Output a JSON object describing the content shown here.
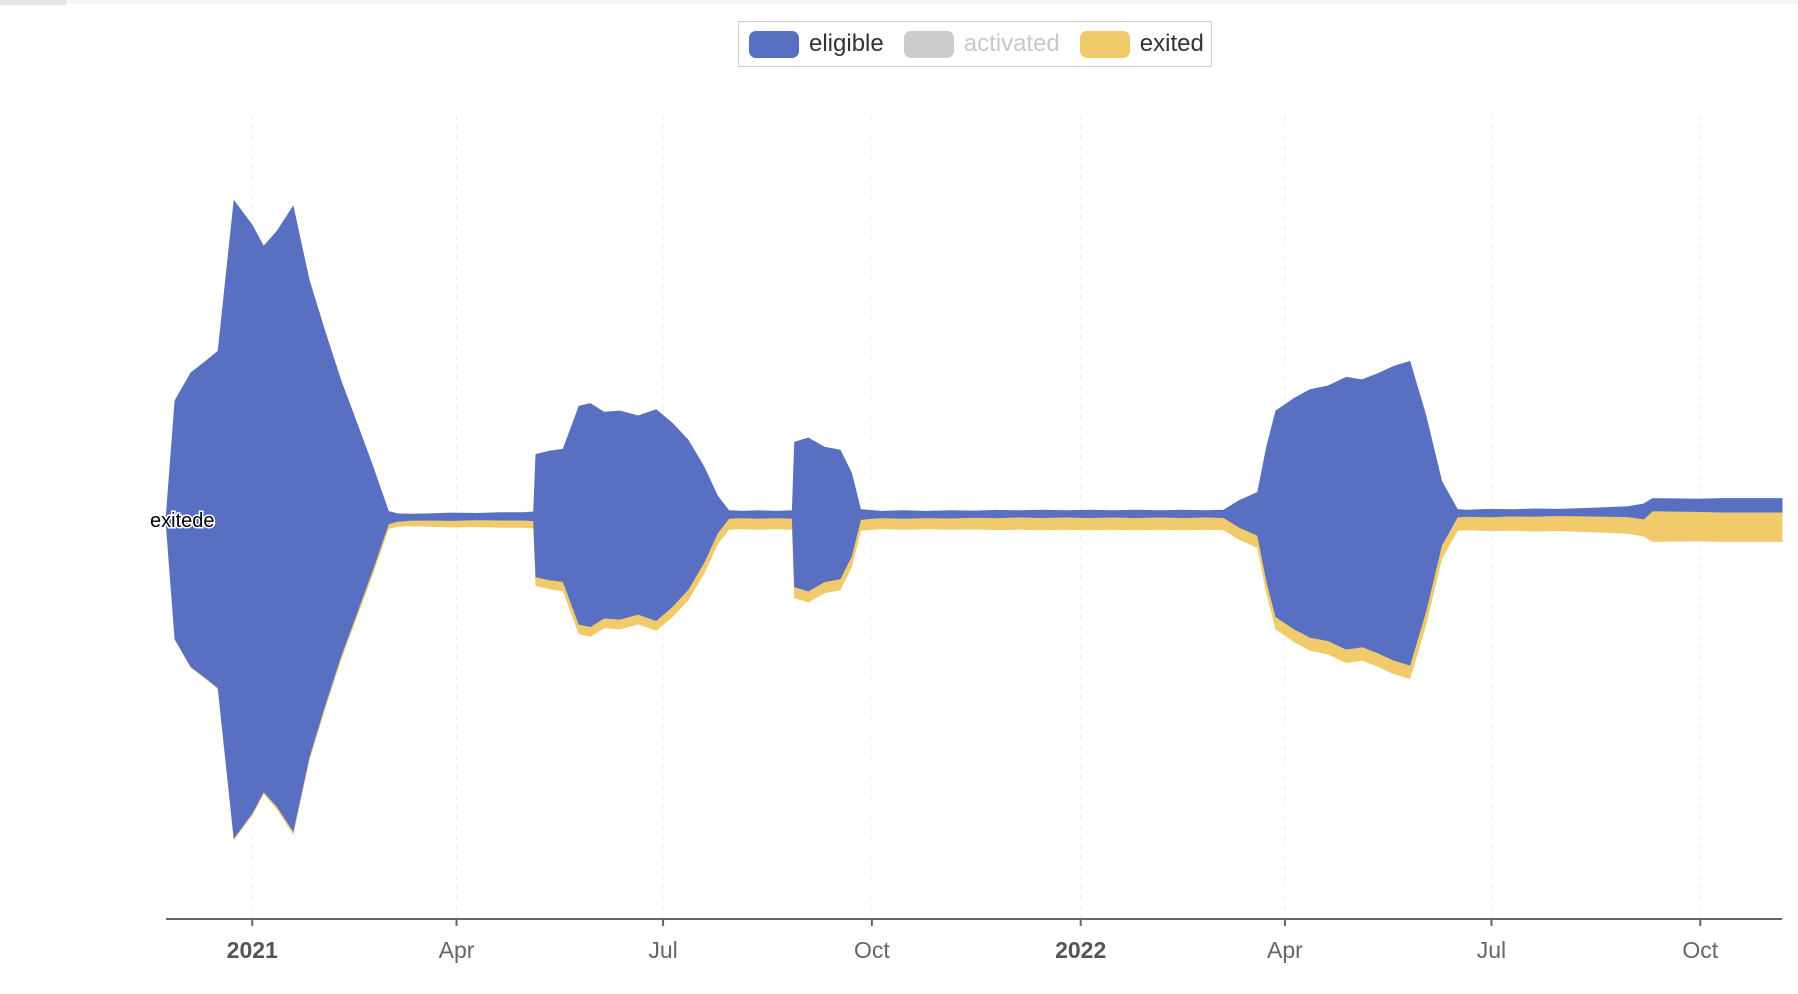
{
  "legend": {
    "items": [
      {
        "label": "eligible",
        "color": "#5970c2",
        "active": true
      },
      {
        "label": "activated",
        "color": "#cccccc",
        "active": false
      },
      {
        "label": "exited",
        "color": "#f1cb6b",
        "active": true
      }
    ]
  },
  "hover_label": "exitede",
  "chart_data": {
    "type": "area",
    "layout": "streamgraph",
    "title": "",
    "xlabel": "",
    "ylabel": "",
    "grid": "vertical",
    "legend_position": "top-center",
    "xlim": [
      "2020-11-24",
      "2022-11-06"
    ],
    "x_ticks": [
      {
        "date": "2021-01-01",
        "label": "2021",
        "major": true
      },
      {
        "date": "2021-04-01",
        "label": "Apr",
        "major": false
      },
      {
        "date": "2021-07-01",
        "label": "Jul",
        "major": false
      },
      {
        "date": "2021-10-01",
        "label": "Oct",
        "major": false
      },
      {
        "date": "2022-01-01",
        "label": "2022",
        "major": true
      },
      {
        "date": "2022-04-01",
        "label": "Apr",
        "major": false
      },
      {
        "date": "2022-07-01",
        "label": "Jul",
        "major": false
      },
      {
        "date": "2022-10-01",
        "label": "Oct",
        "major": false
      }
    ],
    "series": [
      {
        "name": "eligible",
        "color": "#5970c2",
        "x": [
          "2020-11-24",
          "2020-11-28",
          "2020-12-05",
          "2020-12-12",
          "2020-12-17",
          "2020-12-24",
          "2021-01-01",
          "2021-01-06",
          "2021-01-12",
          "2021-01-19",
          "2021-01-26",
          "2021-02-02",
          "2021-02-09",
          "2021-02-16",
          "2021-02-23",
          "2021-03-02",
          "2021-03-06",
          "2021-03-12",
          "2021-03-20",
          "2021-03-30",
          "2021-04-10",
          "2021-04-20",
          "2021-04-30",
          "2021-05-05",
          "2021-05-06",
          "2021-05-12",
          "2021-05-18",
          "2021-05-25",
          "2021-05-30",
          "2021-06-05",
          "2021-06-12",
          "2021-06-20",
          "2021-06-28",
          "2021-07-05",
          "2021-07-12",
          "2021-07-19",
          "2021-07-25",
          "2021-07-30",
          "2021-08-05",
          "2021-08-12",
          "2021-08-20",
          "2021-08-27",
          "2021-08-28",
          "2021-09-03",
          "2021-09-10",
          "2021-09-17",
          "2021-09-22",
          "2021-09-26",
          "2021-10-05",
          "2021-10-15",
          "2021-10-25",
          "2021-11-05",
          "2021-11-15",
          "2021-11-25",
          "2021-12-05",
          "2021-12-15",
          "2021-12-25",
          "2022-01-05",
          "2022-01-15",
          "2022-01-25",
          "2022-02-05",
          "2022-02-15",
          "2022-02-25",
          "2022-03-05",
          "2022-03-12",
          "2022-03-20",
          "2022-03-24",
          "2022-03-28",
          "2022-04-05",
          "2022-04-12",
          "2022-04-20",
          "2022-04-28",
          "2022-05-05",
          "2022-05-12",
          "2022-05-19",
          "2022-05-26",
          "2022-06-02",
          "2022-06-09",
          "2022-06-16",
          "2022-06-20",
          "2022-06-30",
          "2022-07-10",
          "2022-07-20",
          "2022-07-30",
          "2022-08-10",
          "2022-08-20",
          "2022-08-30",
          "2022-09-06",
          "2022-09-10",
          "2022-09-20",
          "2022-09-30",
          "2022-10-10",
          "2022-10-20",
          "2022-10-30",
          "2022-11-06"
        ],
        "values": [
          0,
          195,
          240,
          260,
          275,
          520,
          480,
          445,
          470,
          510,
          390,
          305,
          225,
          155,
          85,
          10,
          6,
          5,
          5,
          6,
          5,
          6,
          6,
          7,
          100,
          105,
          108,
          178,
          182,
          168,
          170,
          162,
          172,
          150,
          122,
          78,
          30,
          6,
          5,
          6,
          5,
          6,
          118,
          125,
          110,
          105,
          68,
          8,
          5,
          6,
          5,
          6,
          5,
          6,
          5,
          6,
          5,
          6,
          5,
          6,
          5,
          6,
          5,
          6,
          22,
          35,
          110,
          168,
          188,
          202,
          208,
          222,
          218,
          228,
          240,
          248,
          160,
          52,
          6,
          5,
          6,
          5,
          6,
          5,
          6,
          7,
          8,
          12,
          10,
          10,
          10,
          11,
          11,
          11,
          11
        ]
      },
      {
        "name": "exited",
        "color": "#f1cb6b",
        "x": [
          "2020-11-24",
          "2020-12-17",
          "2021-01-12",
          "2021-02-09",
          "2021-03-06",
          "2021-03-20",
          "2021-04-20",
          "2021-05-05",
          "2021-05-06",
          "2021-05-30",
          "2021-06-28",
          "2021-07-25",
          "2021-07-30",
          "2021-08-20",
          "2021-08-28",
          "2021-09-10",
          "2021-09-26",
          "2021-10-25",
          "2021-12-05",
          "2022-01-15",
          "2022-02-15",
          "2022-03-12",
          "2022-03-28",
          "2022-04-20",
          "2022-05-19",
          "2022-06-09",
          "2022-06-20",
          "2022-07-20",
          "2022-08-20",
          "2022-09-06",
          "2022-09-10",
          "2022-09-30",
          "2022-10-20",
          "2022-11-06"
        ],
        "values": [
          0,
          1,
          2,
          3,
          4,
          5,
          6,
          6,
          7,
          8,
          8,
          9,
          9,
          9,
          9,
          9,
          9,
          9,
          10,
          10,
          10,
          10,
          10,
          11,
          11,
          11,
          11,
          12,
          13,
          14,
          25,
          24,
          24,
          24
        ]
      }
    ]
  }
}
